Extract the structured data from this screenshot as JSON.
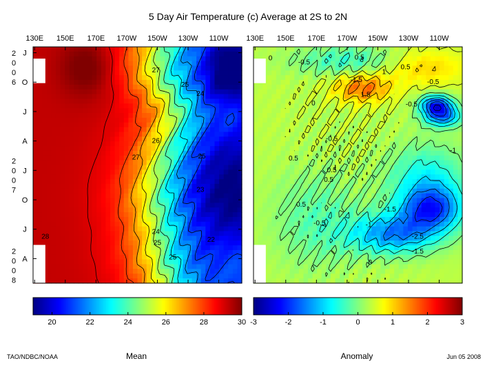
{
  "chart_data": [
    {
      "type": "heatmap",
      "panel": "mean",
      "title": "5 Day Air Temperature (c) Average at 2S to 2N",
      "x_tick_labels": [
        "130E",
        "150E",
        "170E",
        "170W",
        "150W",
        "130W",
        "110W"
      ],
      "x_ticks_deg_east": [
        130,
        150,
        170,
        190,
        210,
        230,
        250
      ],
      "x_range_deg_east": [
        129,
        265
      ],
      "y_tick_labels": [
        "J",
        "O",
        "J",
        "A",
        "J",
        "O",
        "J",
        "A"
      ],
      "y_ticks_month_index": [
        0,
        3,
        6,
        9,
        12,
        15,
        18,
        21
      ],
      "y_range_month_index": [
        -0.6,
        23.5
      ],
      "year_labels": [
        {
          "year": "2006",
          "digits": [
            "2",
            "0",
            "0",
            "6"
          ],
          "center_month_index": 1.5
        },
        {
          "year": "2007",
          "digits": [
            "2",
            "0",
            "0",
            "7"
          ],
          "center_month_index": 12.5
        },
        {
          "year": "2008",
          "digits": [
            "2",
            "0",
            "0",
            "8"
          ],
          "center_month_index": 21.7
        }
      ],
      "missing_blocks": [
        {
          "x": [
            129,
            137
          ],
          "y": [
            0.6,
            3.1
          ]
        },
        {
          "x": [
            129,
            137
          ],
          "y": [
            19.6,
            23.5
          ]
        }
      ],
      "contour_labels": [
        {
          "text": "27",
          "lon": 209,
          "month": 1.8
        },
        {
          "text": "25",
          "lon": 228,
          "month": 3.3
        },
        {
          "text": "24",
          "lon": 238,
          "month": 4.2
        },
        {
          "text": "26",
          "lon": 209,
          "month": 9.0
        },
        {
          "text": "27",
          "lon": 196,
          "month": 10.7
        },
        {
          "text": "25",
          "lon": 239,
          "month": 10.6
        },
        {
          "text": "23",
          "lon": 238,
          "month": 14.0
        },
        {
          "text": "24",
          "lon": 209,
          "month": 18.3
        },
        {
          "text": "25",
          "lon": 210,
          "month": 19.4
        },
        {
          "text": "25",
          "lon": 220,
          "month": 20.9
        },
        {
          "text": "22",
          "lon": 245,
          "month": 19.1
        },
        {
          "text": "28",
          "lon": 137,
          "month": 18.8
        }
      ],
      "colorbar": {
        "label": "Mean",
        "range": [
          19,
          30
        ],
        "ticks": [
          20,
          22,
          24,
          26,
          28,
          30
        ],
        "tick_labels": [
          "20",
          "22",
          "24",
          "26",
          "28",
          "30"
        ]
      }
    },
    {
      "type": "heatmap",
      "panel": "anomaly",
      "x_tick_labels": [
        "130E",
        "150E",
        "170E",
        "170W",
        "150W",
        "130W",
        "110W"
      ],
      "x_ticks_deg_east": [
        130,
        150,
        170,
        190,
        210,
        230,
        250
      ],
      "x_range_deg_east": [
        129,
        265
      ],
      "y_range_month_index": [
        -0.6,
        23.5
      ],
      "missing_blocks": [
        {
          "x": [
            129,
            137
          ],
          "y": [
            0.6,
            3.1
          ]
        },
        {
          "x": [
            129,
            137
          ],
          "y": [
            19.6,
            23.5
          ]
        }
      ],
      "contour_labels": [
        {
          "text": "0",
          "lon": 140,
          "month": 0.6
        },
        {
          "text": "0.5",
          "lon": 198,
          "month": 0.5
        },
        {
          "text": "-0.5",
          "lon": 162,
          "month": 1.0
        },
        {
          "text": "0.5",
          "lon": 228,
          "month": 1.5
        },
        {
          "text": "1",
          "lon": 214,
          "month": 2.0
        },
        {
          "text": "-1.5",
          "lon": 196,
          "month": 2.8
        },
        {
          "text": "-0.5",
          "lon": 246,
          "month": 3.0
        },
        {
          "text": "1.5",
          "lon": 202,
          "month": 4.3
        },
        {
          "text": "-0.5",
          "lon": 232,
          "month": 5.3
        },
        {
          "text": "0",
          "lon": 168,
          "month": 5.2
        },
        {
          "text": "-0.5",
          "lon": 180,
          "month": 8.8
        },
        {
          "text": "-1",
          "lon": 259,
          "month": 10.0
        },
        {
          "text": "0.5",
          "lon": 155,
          "month": 10.8
        },
        {
          "text": "0.5",
          "lon": 180,
          "month": 12.0
        },
        {
          "text": "0.5",
          "lon": 178,
          "month": 13.0
        },
        {
          "text": "-1.5",
          "lon": 218,
          "month": 16.0
        },
        {
          "text": "-0.5",
          "lon": 172,
          "month": 17.4
        },
        {
          "text": "0.5",
          "lon": 160,
          "month": 15.5
        },
        {
          "text": "-1",
          "lon": 204,
          "month": 17.6
        },
        {
          "text": "-2.5",
          "lon": 236,
          "month": 18.8
        },
        {
          "text": "-1.5",
          "lon": 236,
          "month": 20.3
        },
        {
          "text": "0",
          "lon": 205,
          "month": 21.4
        }
      ],
      "colorbar": {
        "label": "Anomaly",
        "range": [
          -3,
          3
        ],
        "ticks": [
          -3,
          -2,
          -1,
          0,
          1,
          2,
          3
        ],
        "tick_labels": [
          "-3",
          "-2",
          "-1",
          "0",
          "1",
          "2",
          "3"
        ]
      }
    }
  ],
  "footer": {
    "source": "TAO/NDBC/NOAA",
    "date": "Jun 05 2008"
  },
  "colors": {
    "colormap": [
      "#000083",
      "#0000ff",
      "#00ffff",
      "#ffff00",
      "#ff0000",
      "#800000"
    ],
    "contour": "#000000",
    "background": "#ffffff"
  }
}
